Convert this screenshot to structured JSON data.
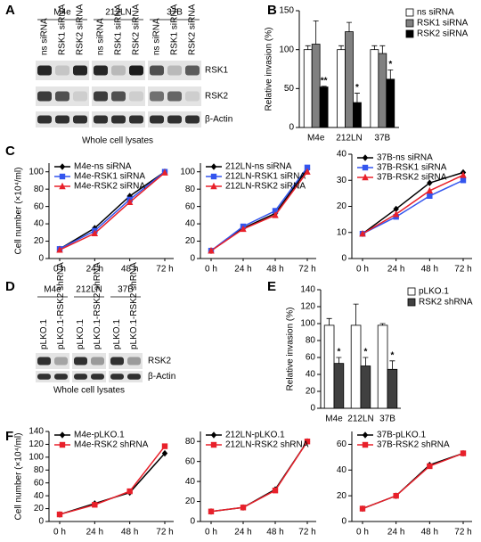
{
  "panel_labels": [
    "A",
    "B",
    "C",
    "D",
    "E",
    "F"
  ],
  "blots": [
    {
      "groups": [
        "M4e",
        "212LN",
        "37B"
      ],
      "lanes": [
        "ns siRNA",
        "RSK1 siRNA",
        "RSK2 siRNA",
        "ns siRNA",
        "RSK1 siRNA",
        "RSK2 siRNA",
        "ns siRNA",
        "RSK1 siRNA",
        "RSK2 siRNA"
      ],
      "bands": [
        "RSK1",
        "RSK2",
        "β-Actin"
      ],
      "caption": "Whole cell lysates"
    },
    {
      "groups": [
        "M4e",
        "212LN",
        "37B"
      ],
      "lanes": [
        "pLKO.1",
        "pLKO.1-RSK2 shRNA",
        "pLKO.1",
        "pLKO.1-RSK2 shRNA",
        "pLKO.1",
        "pLKO.1-RSK2 shRNA"
      ],
      "bands": [
        "RSK2",
        "β-Actin"
      ],
      "caption": "Whole cell lysates"
    }
  ],
  "chart_data": [
    {
      "type": "bar",
      "y_label": "Relative invasion (%)",
      "legend": "outside right",
      "categories": [
        "M4e",
        "212LN",
        "37B"
      ],
      "ylim": [
        0,
        150
      ],
      "yticks": [
        0,
        50,
        100,
        150
      ],
      "series": [
        {
          "name": "ns siRNA",
          "color": "#ffffff",
          "values": [
            100,
            100,
            100
          ],
          "errors": [
            5,
            5,
            5
          ],
          "annotations": [
            null,
            null,
            null
          ]
        },
        {
          "name": "RSK1 siRNA",
          "color": "#808080",
          "values": [
            107,
            123,
            95
          ],
          "errors": [
            30,
            12,
            10
          ],
          "annotations": [
            null,
            null,
            null
          ]
        },
        {
          "name": "RSK2 siRNA",
          "color": "#000000",
          "values": [
            52,
            32,
            62
          ],
          "errors": [
            1,
            12,
            12
          ],
          "annotations": [
            "**",
            "*",
            "*"
          ]
        }
      ]
    },
    {
      "type": "line",
      "y_label": "Cell number (×10⁴/ml)",
      "legend": "upper left",
      "categories": [
        "0 h",
        "24 h",
        "48 h",
        "72 h"
      ],
      "ylim": [
        0,
        110
      ],
      "yticks": [
        0,
        20,
        40,
        60,
        80,
        100
      ],
      "series": [
        {
          "name": "M4e-ns siRNA",
          "color": "#000000",
          "marker": "diamond",
          "values": [
            11,
            35,
            72,
            100
          ]
        },
        {
          "name": "M4e-RSK1 siRNA",
          "color": "#3355ee",
          "marker": "square",
          "values": [
            11,
            32,
            68,
            100
          ]
        },
        {
          "name": "M4e-RSK2 siRNA",
          "color": "#e8202a",
          "marker": "triangle",
          "values": [
            10,
            29,
            65,
            99
          ]
        }
      ]
    },
    {
      "type": "line",
      "legend": "upper left",
      "categories": [
        "0 h",
        "24 h",
        "48 h",
        "72 h"
      ],
      "ylim": [
        0,
        110
      ],
      "yticks": [
        0,
        20,
        40,
        60,
        80,
        100
      ],
      "series": [
        {
          "name": "212LN-ns siRNA",
          "color": "#000000",
          "marker": "diamond",
          "values": [
            9,
            35,
            52,
            103
          ]
        },
        {
          "name": "212LN-RSK1 siRNA",
          "color": "#3355ee",
          "marker": "square",
          "values": [
            9,
            37,
            55,
            105
          ]
        },
        {
          "name": "212LN-RSK2 siRNA",
          "color": "#e8202a",
          "marker": "triangle",
          "values": [
            9,
            34,
            50,
            100
          ]
        }
      ]
    },
    {
      "type": "line",
      "legend": "upper left",
      "categories": [
        "0 h",
        "24 h",
        "48 h",
        "72 h"
      ],
      "ylim": [
        0,
        40
      ],
      "yticks": [
        0,
        10,
        20,
        30,
        40
      ],
      "series": [
        {
          "name": "37B-ns siRNA",
          "color": "#000000",
          "marker": "diamond",
          "values": [
            9.5,
            19,
            29,
            33
          ]
        },
        {
          "name": "37B-RSK1 siRNA",
          "color": "#3355ee",
          "marker": "square",
          "values": [
            9.5,
            16,
            24,
            30
          ]
        },
        {
          "name": "37B-RSK2 siRNA",
          "color": "#e8202a",
          "marker": "triangle",
          "values": [
            9.5,
            17,
            26,
            32
          ]
        }
      ]
    },
    {
      "type": "bar",
      "y_label": "Relative invasion (%)",
      "legend": "outside right",
      "categories": [
        "M4e",
        "212LN",
        "37B"
      ],
      "ylim": [
        0,
        140
      ],
      "yticks": [
        0,
        20,
        40,
        60,
        80,
        100,
        120,
        140
      ],
      "series": [
        {
          "name": "pLKO.1",
          "color": "#ffffff",
          "values": [
            98,
            98,
            98
          ],
          "errors": [
            8,
            25,
            2
          ],
          "annotations": [
            null,
            null,
            null
          ]
        },
        {
          "name": "RSK2 shRNA",
          "color": "#404040",
          "values": [
            53,
            50,
            46
          ],
          "errors": [
            7,
            10,
            10
          ],
          "annotations": [
            "*",
            "*",
            "*"
          ]
        }
      ]
    },
    {
      "type": "line",
      "y_label": "Cell number (×10⁴/ml)",
      "legend": "upper left",
      "categories": [
        "0 h",
        "24 h",
        "48 h",
        "72 h"
      ],
      "ylim": [
        0,
        140
      ],
      "yticks": [
        0,
        20,
        40,
        60,
        80,
        100,
        120,
        140
      ],
      "series": [
        {
          "name": "M4e-pLKO.1",
          "color": "#000000",
          "marker": "diamond",
          "values": [
            11,
            28,
            45,
            106
          ]
        },
        {
          "name": "M4e-RSK2 shRNA",
          "color": "#e8202a",
          "marker": "square",
          "values": [
            11,
            26,
            47,
            117
          ]
        }
      ]
    },
    {
      "type": "line",
      "legend": "upper left",
      "categories": [
        "0 h",
        "24 h",
        "48 h",
        "72 h"
      ],
      "ylim": [
        0,
        90
      ],
      "yticks": [
        0,
        20,
        40,
        60,
        80
      ],
      "series": [
        {
          "name": "212LN-pLKO.1",
          "color": "#000000",
          "marker": "diamond",
          "values": [
            10,
            14,
            32,
            80
          ]
        },
        {
          "name": "212LN-RSK2 shRNA",
          "color": "#e8202a",
          "marker": "square",
          "values": [
            10,
            14,
            31,
            80
          ]
        }
      ]
    },
    {
      "type": "line",
      "legend": "upper left",
      "categories": [
        "0 h",
        "24 h",
        "48 h",
        "72 h"
      ],
      "ylim": [
        0,
        70
      ],
      "yticks": [
        0,
        20,
        40,
        60
      ],
      "series": [
        {
          "name": "37B-pLKO.1",
          "color": "#000000",
          "marker": "diamond",
          "values": [
            10,
            20,
            44,
            53
          ]
        },
        {
          "name": "37B-RSK2 shRNA",
          "color": "#e8202a",
          "marker": "square",
          "values": [
            10,
            20,
            43,
            53
          ]
        }
      ]
    }
  ]
}
